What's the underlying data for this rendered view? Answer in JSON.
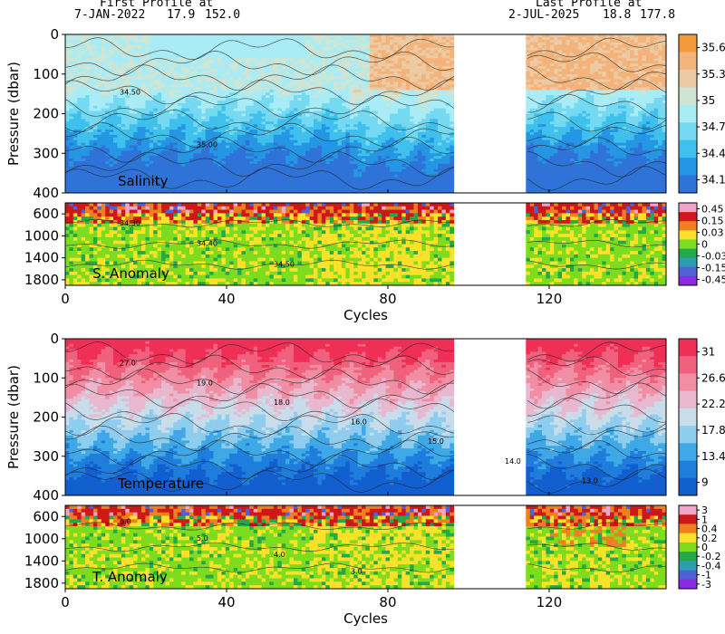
{
  "header": {
    "first_label": "First Profile at",
    "first_date": "7-JAN-2022",
    "first_lat": "17.9",
    "first_lon": "152.0",
    "last_label": "Last Profile at",
    "last_date": "2-JUL-2025",
    "last_lat": "18.8",
    "last_lon": "177.8"
  },
  "chart_data": [
    {
      "type": "heatmap",
      "panel": "Salinity",
      "panel_label": "Salinity",
      "ylabel": "Pressure (dbar)",
      "xlim": [
        0,
        149
      ],
      "ylim": [
        400,
        0
      ],
      "y_ticks": [
        0,
        100,
        200,
        300,
        400
      ],
      "x_ticks": [
        0,
        40,
        80,
        120
      ],
      "no_data_cycles": [
        97,
        115
      ],
      "colorbar_labels": [
        "35.6",
        "35.3",
        "35",
        "34.7",
        "34.4",
        "34.1"
      ],
      "colors": [
        "#f59a3a",
        "#f4b37a",
        "#eccaa3",
        "#cfe4d2",
        "#a9ecf5",
        "#74d9f1",
        "#3fc0ed",
        "#2496e3",
        "#2f73d8"
      ],
      "contour_labels": [
        "34.50",
        "35.00"
      ],
      "layers_by_pressure": [
        {
          "p": 0,
          "value": 34.7
        },
        {
          "p": 100,
          "value": 35.0
        },
        {
          "p": 160,
          "value": 34.9
        },
        {
          "p": 220,
          "value": 34.7
        },
        {
          "p": 300,
          "value": 34.5
        },
        {
          "p": 400,
          "value": 34.3
        }
      ]
    },
    {
      "type": "heatmap",
      "panel": "Salinity anomaly",
      "panel_label": "S. Anomaly",
      "xlim": [
        0,
        149
      ],
      "ylim": [
        1900,
        400
      ],
      "y_ticks": [
        600,
        1000,
        1400,
        1800
      ],
      "xlabel": "Cycles",
      "x_ticks": [
        0,
        40,
        80,
        120
      ],
      "colorbar_labels": [
        "0.45",
        "0.15",
        "0.03",
        "0",
        "-0.03",
        "-0.15",
        "-0.45"
      ],
      "colors": [
        "#f0a6c8",
        "#cc1818",
        "#f07f20",
        "#fbe12a",
        "#7ddc1e",
        "#25a84a",
        "#2b9fb0",
        "#5060d8",
        "#8a2be2"
      ],
      "contour_labels": [
        "34.30",
        "34.40",
        "34.50"
      ]
    },
    {
      "type": "heatmap",
      "panel": "Temperature",
      "panel_label": "Temperature",
      "ylabel": "Pressure (dbar)",
      "xlim": [
        0,
        149
      ],
      "ylim": [
        400,
        0
      ],
      "y_ticks": [
        0,
        100,
        200,
        300,
        400
      ],
      "x_ticks": [
        0,
        40,
        80,
        120
      ],
      "colorbar_labels": [
        "31",
        "26.6",
        "22.2",
        "17.8",
        "13.4",
        "9"
      ],
      "colors": [
        "#ef2f55",
        "#f0617d",
        "#f08fa4",
        "#e8b8cf",
        "#c8dcea",
        "#8fcdee",
        "#3ea9e6",
        "#1f7ddc",
        "#125fd0"
      ],
      "contour_labels": [
        "27.0",
        "19.0",
        "18.0",
        "16.0",
        "15.0",
        "14.0",
        "13.0"
      ]
    },
    {
      "type": "heatmap",
      "panel": "Temperature anomaly",
      "panel_label": "T. Anomaly",
      "xlim": [
        0,
        149
      ],
      "ylim": [
        1900,
        400
      ],
      "y_ticks": [
        600,
        1000,
        1400,
        1800
      ],
      "xlabel": "Cycles",
      "x_ticks": [
        0,
        40,
        80,
        120
      ],
      "colorbar_labels": [
        "3",
        "1",
        "0.4",
        "0.2",
        "0",
        "-0.2",
        "-0.4",
        "-1",
        "-3"
      ],
      "colors": [
        "#f0a6c8",
        "#cc1818",
        "#f07f20",
        "#fbe12a",
        "#7ddc1e",
        "#25a84a",
        "#2b9fb0",
        "#5060d8",
        "#8a2be2"
      ],
      "contour_labels": [
        "6.0",
        "5.0",
        "4.0",
        "3.0"
      ]
    }
  ]
}
